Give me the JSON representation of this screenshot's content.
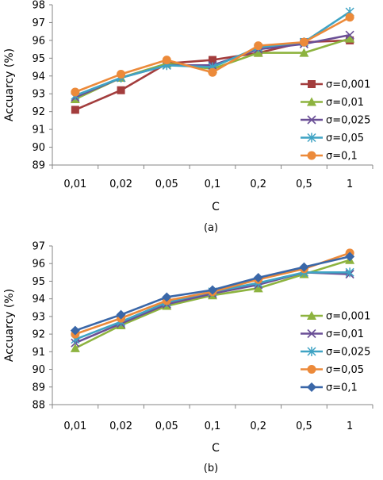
{
  "chart_data": [
    {
      "type": "line",
      "caption": "(a)",
      "xlabel": "C",
      "ylabel": "Accuarcy (%)",
      "categories": [
        "0,01",
        "0,02",
        "0,05",
        "0,1",
        "0,2",
        "0,5",
        "1"
      ],
      "ylim": [
        89,
        98
      ],
      "yticks": [
        "89",
        "90",
        "91",
        "92",
        "93",
        "94",
        "95",
        "96",
        "97",
        "98"
      ],
      "grid": false,
      "legend_position": "right",
      "series": [
        {
          "name": "σ=0,001",
          "color": "#a33d3d",
          "marker": "square",
          "values": [
            92.1,
            93.2,
            94.7,
            94.9,
            95.3,
            95.9,
            96.0
          ]
        },
        {
          "name": "σ=0,01",
          "color": "#8db33f",
          "marker": "triangle",
          "values": [
            92.7,
            93.9,
            94.7,
            94.4,
            95.3,
            95.3,
            96.1
          ]
        },
        {
          "name": "σ=0,025",
          "color": "#6a4f96",
          "marker": "x",
          "values": [
            92.8,
            93.9,
            94.6,
            94.6,
            95.5,
            95.8,
            96.3
          ]
        },
        {
          "name": "σ=0,05",
          "color": "#3fa3c4",
          "marker": "star",
          "values": [
            92.9,
            93.9,
            94.6,
            94.5,
            95.6,
            95.9,
            97.6
          ]
        },
        {
          "name": "σ=0,1",
          "color": "#ec8a3a",
          "marker": "circle",
          "values": [
            93.1,
            94.1,
            94.9,
            94.2,
            95.7,
            95.9,
            97.3
          ]
        }
      ]
    },
    {
      "type": "line",
      "caption": "(b)",
      "xlabel": "C",
      "ylabel": "Accuarcy (%)",
      "categories": [
        "0,01",
        "0,02",
        "0,05",
        "0,1",
        "0,2",
        "0,5",
        "1"
      ],
      "ylim": [
        88,
        97
      ],
      "yticks": [
        "88",
        "89",
        "90",
        "91",
        "92",
        "93",
        "94",
        "95",
        "96",
        "97"
      ],
      "grid": false,
      "legend_position": "right",
      "series": [
        {
          "name": "σ=0,001",
          "color": "#8db33f",
          "marker": "triangle",
          "values": [
            91.2,
            92.5,
            93.6,
            94.2,
            94.6,
            95.4,
            96.2
          ]
        },
        {
          "name": "σ=0,01",
          "color": "#6a4f96",
          "marker": "x",
          "values": [
            91.5,
            92.6,
            93.7,
            94.3,
            94.8,
            95.5,
            95.4
          ]
        },
        {
          "name": "σ=0,025",
          "color": "#3fa3c4",
          "marker": "star",
          "values": [
            91.7,
            92.7,
            93.8,
            94.4,
            94.9,
            95.5,
            95.5
          ]
        },
        {
          "name": "σ=0,05",
          "color": "#ec8a3a",
          "marker": "circle",
          "values": [
            92.0,
            92.9,
            93.9,
            94.4,
            95.1,
            95.7,
            96.6
          ]
        },
        {
          "name": "σ=0,1",
          "color": "#3a67a8",
          "marker": "diamond",
          "values": [
            92.2,
            93.1,
            94.1,
            94.5,
            95.2,
            95.8,
            96.4
          ]
        }
      ]
    }
  ]
}
